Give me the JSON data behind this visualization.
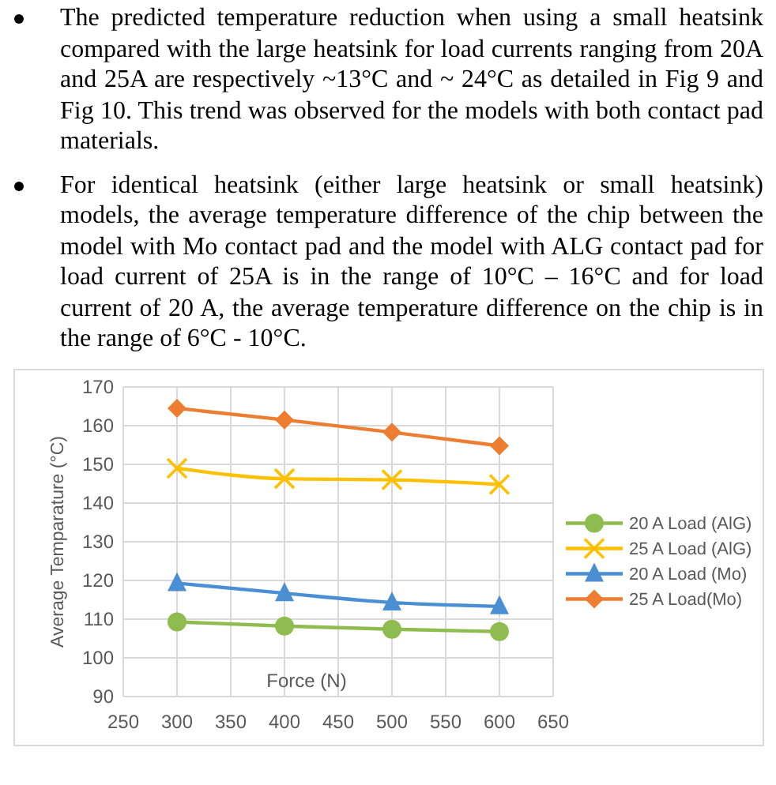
{
  "chart_data": {
    "type": "line",
    "annotations": [
      "The predicted temperature reduction when using  a small heatsink compared with the large heatsink for load currents ranging from  20A and 25A are respectively ~13°C and ~ 24°C as detailed in  Fig 9 and Fig 10. This trend was observed for the models with both contact pad materials.",
      "For identical heatsink (either large heatsink or small heatsink) models, the average temperature difference of the chip between the model with Mo contact pad and the model with ALG contact pad for load current of 25A is in the range of 10°C – 16°C and for load current of 20 A, the average temperature difference on the chip is in the range of 6°C - 10°C."
    ],
    "xlabel": "Force (N)",
    "ylabel": "Average Temparature (°C)",
    "x": [
      300,
      400,
      500,
      600
    ],
    "series": [
      {
        "name": "20 A Load (AlG)",
        "color": "#8fbc4e",
        "marker": "circle",
        "values": [
          109.3,
          108.2,
          107.4,
          106.8
        ]
      },
      {
        "name": "25 A Load (AlG)",
        "color": "#ffc000",
        "marker": "cross",
        "values": [
          149,
          146.3,
          146,
          144.8
        ]
      },
      {
        "name": "20 A Load (Mo)",
        "color": "#4a8fd4",
        "marker": "triangle",
        "values": [
          119.3,
          116.7,
          114.3,
          113.3
        ]
      },
      {
        "name": "25 A Load(Mo)",
        "color": "#ed7d31",
        "marker": "diamond",
        "values": [
          164.5,
          161.5,
          158.3,
          154.8
        ]
      }
    ],
    "xlim": [
      250,
      650
    ],
    "xticks": [
      250,
      300,
      350,
      400,
      450,
      500,
      550,
      600,
      650
    ],
    "ylim": [
      90,
      170
    ],
    "yticks": [
      90,
      100,
      110,
      120,
      130,
      140,
      150,
      160,
      170
    ],
    "grid": true,
    "legend": "right"
  }
}
